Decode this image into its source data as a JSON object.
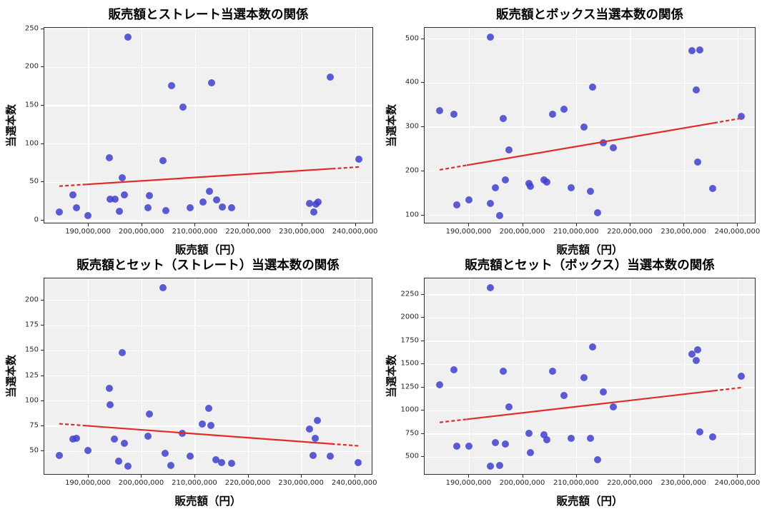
{
  "style": {
    "figure_background": "#ffffff",
    "plot_background": "#f0f0f0",
    "grid_color": "#ffffff",
    "spine_color": "#2e2e2e",
    "point_color": "#4040cc",
    "point_opacity": 0.85,
    "trend_color": "#e02b2b",
    "tick_color": "#262626"
  },
  "chart_data": {
    "type": "scatter",
    "layout": "2x2",
    "grid": true,
    "legend_position": "none",
    "shared_x": {
      "label": "販売額（円）",
      "xlim": [
        181700000,
        243400000
      ],
      "ticks": [
        190000000,
        200000000,
        210000000,
        220000000,
        230000000,
        240000000
      ],
      "tick_labels": [
        "190,000,000",
        "200,000,000",
        "210,000,000",
        "220,000,000",
        "230,000,000",
        "240,000,000"
      ],
      "values_yen": [
        184500000,
        187100000,
        187700000,
        189900000,
        193900000,
        194000000,
        194900000,
        195700000,
        196300000,
        196700000,
        197400000,
        201100000,
        201400000,
        203900000,
        204400000,
        205500000,
        207600000,
        209000000,
        211400000,
        212600000,
        213000000,
        213900000,
        215000000,
        216800000,
        231400000,
        232200000,
        232500000,
        232900000,
        235300000,
        240600000
      ]
    },
    "plots": [
      {
        "title": "販売額とストレート当選本数の関係",
        "ylabel": "当選本数",
        "ylim": [
          -4.65,
          251.65
        ],
        "yticks": [
          0,
          50,
          100,
          150,
          200,
          250
        ],
        "y": [
          11,
          34,
          17,
          7,
          82,
          28,
          28,
          12,
          56,
          34,
          240,
          17,
          33,
          78,
          13,
          176,
          148,
          17,
          24,
          38,
          180,
          27,
          18,
          17,
          22,
          11,
          21,
          24,
          187,
          80
        ],
        "trend": {
          "y_start": 45,
          "y_end": 70,
          "style": "dashed-tips"
        }
      },
      {
        "title": "販売額とボックス当選本数の関係",
        "ylabel": "当選本数",
        "ylim": [
          79.75,
          525.25
        ],
        "yticks": [
          100,
          200,
          300,
          400,
          500
        ],
        "y": [
          338,
          330,
          124,
          135,
          505,
          126,
          162,
          100,
          320,
          180,
          248,
          172,
          166,
          180,
          175,
          330,
          340,
          162,
          300,
          155,
          390,
          106,
          265,
          253,
          473,
          385,
          220,
          475,
          161,
          325
        ],
        "trend": {
          "y_start": 203,
          "y_end": 320,
          "style": "dashed-tips"
        }
      },
      {
        "title": "販売額とセット（ストレート）当選本数の関係",
        "ylabel": "当選本数",
        "ylim": [
          26.1,
          221.9
        ],
        "yticks": [
          50,
          75,
          100,
          125,
          150,
          175,
          200
        ],
        "y": [
          46,
          62,
          63,
          51,
          113,
          96,
          62,
          40,
          148,
          58,
          35,
          65,
          87,
          213,
          48,
          36,
          68,
          45,
          77,
          93,
          76,
          42,
          39,
          38,
          72,
          46,
          63,
          81,
          45,
          39
        ],
        "trend": {
          "y_start": 77.5,
          "y_end": 55.5,
          "style": "dashed-tips"
        }
      },
      {
        "title": "販売額とセット（ボックス）当選本数の関係",
        "ylabel": "当選本数",
        "ylim": [
          303.5,
          2426.5
        ],
        "yticks": [
          500,
          750,
          1000,
          1250,
          1500,
          1750,
          2000,
          2250
        ],
        "y": [
          1280,
          1445,
          620,
          620,
          2330,
          400,
          660,
          415,
          1430,
          640,
          1040,
          760,
          550,
          745,
          690,
          1430,
          1165,
          705,
          1360,
          700,
          1685,
          470,
          1200,
          1040,
          1610,
          1540,
          1660,
          775,
          720,
          1375
        ],
        "trend": {
          "y_start": 875,
          "y_end": 1250,
          "style": "dashed-tips"
        }
      }
    ]
  }
}
